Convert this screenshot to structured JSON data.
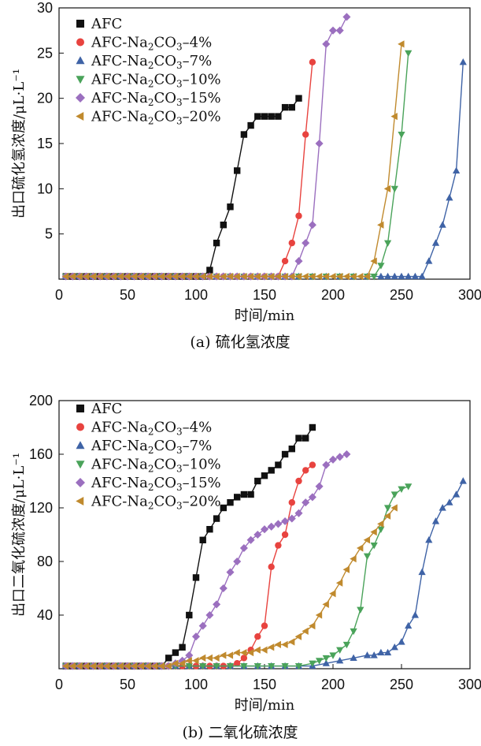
{
  "charts": [
    {
      "id": "a",
      "type": "scatter-line",
      "ylabel": "出口硫化氢浓度/μL·L⁻¹",
      "xlabel": "时间/min",
      "caption": "(a) 硫化氢浓度",
      "xlim": [
        0,
        300
      ],
      "ylim": [
        0,
        30
      ],
      "xticks": [
        0,
        50,
        100,
        150,
        200,
        250,
        300
      ],
      "yticks": [
        5,
        10,
        15,
        20,
        25,
        30
      ],
      "series": [
        {
          "name": "AFC",
          "marker": "square",
          "color": "#111111",
          "x": [
            5,
            10,
            15,
            20,
            25,
            30,
            35,
            40,
            45,
            50,
            55,
            60,
            65,
            70,
            75,
            80,
            85,
            90,
            95,
            100,
            105,
            110,
            115,
            120,
            125,
            130,
            135,
            140,
            145,
            150,
            155,
            160,
            165,
            170,
            175
          ],
          "y": [
            0.3,
            0.3,
            0.3,
            0.3,
            0.3,
            0.3,
            0.3,
            0.3,
            0.3,
            0.3,
            0.3,
            0.3,
            0.3,
            0.3,
            0.3,
            0.3,
            0.3,
            0.3,
            0.3,
            0.3,
            0.3,
            1,
            4,
            6,
            8,
            12,
            16,
            17,
            18,
            18,
            18,
            18,
            19,
            19,
            20
          ]
        },
        {
          "name": "AFC-Na2CO3-4%",
          "label_parts": [
            "AFC-Na",
            "2",
            "CO",
            "3",
            "–4%"
          ],
          "marker": "circle",
          "color": "#e8433f",
          "x": [
            5,
            10,
            15,
            20,
            25,
            30,
            35,
            40,
            45,
            50,
            55,
            60,
            65,
            70,
            75,
            80,
            85,
            90,
            95,
            100,
            105,
            110,
            115,
            120,
            125,
            130,
            135,
            140,
            145,
            150,
            155,
            160,
            165,
            170,
            175,
            180,
            185
          ],
          "y": [
            0.3,
            0.3,
            0.3,
            0.3,
            0.3,
            0.3,
            0.3,
            0.3,
            0.3,
            0.3,
            0.3,
            0.3,
            0.3,
            0.3,
            0.3,
            0.3,
            0.3,
            0.3,
            0.3,
            0.3,
            0.3,
            0.3,
            0.3,
            0.3,
            0.3,
            0.3,
            0.3,
            0.3,
            0.3,
            0.3,
            0.3,
            0.3,
            2,
            4,
            7,
            16,
            24
          ]
        },
        {
          "name": "AFC-Na2CO3-7%",
          "label_parts": [
            "AFC-Na",
            "2",
            "CO",
            "3",
            "–7%"
          ],
          "marker": "triangle-up",
          "color": "#3f63a6",
          "x": [
            5,
            15,
            25,
            35,
            45,
            55,
            65,
            75,
            85,
            95,
            105,
            115,
            125,
            135,
            145,
            155,
            165,
            175,
            185,
            195,
            205,
            215,
            225,
            235,
            240,
            245,
            250,
            255,
            260,
            265,
            270,
            275,
            280,
            285,
            290,
            295
          ],
          "y": [
            0.3,
            0.3,
            0.3,
            0.3,
            0.3,
            0.3,
            0.3,
            0.3,
            0.3,
            0.3,
            0.3,
            0.3,
            0.3,
            0.3,
            0.3,
            0.3,
            0.3,
            0.3,
            0.3,
            0.3,
            0.3,
            0.3,
            0.3,
            0.3,
            0.3,
            0.3,
            0.3,
            0.3,
            0.3,
            0.3,
            2,
            4,
            6,
            9,
            12,
            24
          ]
        },
        {
          "name": "AFC-Na2CO3-10%",
          "label_parts": [
            "AFC-Na",
            "2",
            "CO",
            "3",
            "–10%"
          ],
          "marker": "triangle-down",
          "color": "#4aa35a",
          "x": [
            5,
            15,
            25,
            35,
            45,
            55,
            65,
            75,
            85,
            95,
            105,
            115,
            125,
            135,
            145,
            155,
            165,
            175,
            185,
            195,
            205,
            215,
            225,
            230,
            235,
            240,
            245,
            250,
            255
          ],
          "y": [
            0.3,
            0.3,
            0.3,
            0.3,
            0.3,
            0.3,
            0.3,
            0.3,
            0.3,
            0.3,
            0.3,
            0.3,
            0.3,
            0.3,
            0.3,
            0.3,
            0.3,
            0.3,
            0.3,
            0.3,
            0.3,
            0.3,
            0.3,
            0.3,
            1.5,
            4,
            10,
            16,
            25
          ]
        },
        {
          "name": "AFC-Na2CO3-15%",
          "label_parts": [
            "AFC-Na",
            "2",
            "CO",
            "3",
            "–15%"
          ],
          "marker": "diamond",
          "color": "#9b6fbf",
          "x": [
            5,
            10,
            15,
            20,
            25,
            30,
            35,
            40,
            45,
            50,
            55,
            60,
            65,
            70,
            75,
            80,
            85,
            90,
            95,
            100,
            105,
            110,
            115,
            120,
            125,
            130,
            135,
            140,
            145,
            150,
            155,
            160,
            165,
            170,
            175,
            180,
            185,
            190,
            195,
            200,
            205,
            210
          ],
          "y": [
            0.3,
            0.3,
            0.3,
            0.3,
            0.3,
            0.3,
            0.3,
            0.3,
            0.3,
            0.3,
            0.3,
            0.3,
            0.3,
            0.3,
            0.3,
            0.3,
            0.3,
            0.3,
            0.3,
            0.3,
            0.3,
            0.3,
            0.3,
            0.3,
            0.3,
            0.3,
            0.3,
            0.3,
            0.3,
            0.3,
            0.3,
            0.3,
            0.3,
            0.3,
            2,
            4,
            6,
            15,
            26,
            27.5,
            27.5,
            29
          ]
        },
        {
          "name": "AFC-Na2CO3-20%",
          "label_parts": [
            "AFC-Na",
            "2",
            "CO",
            "3",
            "–20%"
          ],
          "marker": "triangle-left",
          "color": "#c08a2e",
          "x": [
            5,
            10,
            15,
            20,
            25,
            30,
            35,
            40,
            45,
            50,
            55,
            60,
            65,
            70,
            75,
            80,
            85,
            90,
            95,
            100,
            105,
            110,
            115,
            120,
            125,
            130,
            135,
            140,
            145,
            150,
            155,
            160,
            165,
            170,
            175,
            180,
            185,
            190,
            195,
            200,
            205,
            210,
            215,
            220,
            225,
            230,
            235,
            240,
            245,
            250
          ],
          "y": [
            0.3,
            0.3,
            0.3,
            0.3,
            0.3,
            0.3,
            0.3,
            0.3,
            0.3,
            0.3,
            0.3,
            0.3,
            0.3,
            0.3,
            0.3,
            0.3,
            0.3,
            0.3,
            0.3,
            0.3,
            0.3,
            0.3,
            0.3,
            0.3,
            0.3,
            0.3,
            0.3,
            0.3,
            0.3,
            0.3,
            0.3,
            0.3,
            0.3,
            0.3,
            0.3,
            0.3,
            0.3,
            0.3,
            0.3,
            0.3,
            0.3,
            0.3,
            0.3,
            0.3,
            0.3,
            2,
            6,
            10,
            18,
            26
          ]
        }
      ]
    },
    {
      "id": "b",
      "type": "scatter-line",
      "ylabel": "出口二氧化硫浓度/μL·L⁻¹",
      "xlabel": "时间/min",
      "caption": "(b) 二氧化硫浓度",
      "xlim": [
        0,
        300
      ],
      "ylim": [
        0,
        200
      ],
      "xticks": [
        0,
        50,
        100,
        150,
        200,
        250,
        300
      ],
      "yticks": [
        40,
        80,
        120,
        160,
        200
      ],
      "series": [
        {
          "name": "AFC",
          "marker": "square",
          "color": "#111111",
          "x": [
            5,
            10,
            15,
            20,
            25,
            30,
            35,
            40,
            45,
            50,
            55,
            60,
            65,
            70,
            75,
            80,
            85,
            90,
            95,
            100,
            105,
            110,
            115,
            120,
            125,
            130,
            135,
            140,
            145,
            150,
            155,
            160,
            165,
            170,
            175,
            180,
            185
          ],
          "y": [
            2,
            2,
            2,
            2,
            2,
            2,
            2,
            2,
            2,
            2,
            2,
            2,
            2,
            2,
            2,
            8,
            12,
            16,
            40,
            68,
            96,
            104,
            112,
            120,
            124,
            128,
            130,
            130,
            140,
            144,
            148,
            152,
            160,
            164,
            172,
            172,
            180
          ]
        },
        {
          "name": "AFC-Na2CO3-4%",
          "label_parts": [
            "AFC-Na",
            "2",
            "CO",
            "3",
            "–4%"
          ],
          "marker": "circle",
          "color": "#e8433f",
          "x": [
            5,
            10,
            15,
            20,
            25,
            30,
            35,
            40,
            45,
            50,
            55,
            60,
            65,
            70,
            75,
            80,
            85,
            90,
            95,
            100,
            105,
            110,
            115,
            120,
            125,
            130,
            135,
            140,
            145,
            150,
            155,
            160,
            165,
            170,
            175,
            180,
            185
          ],
          "y": [
            2,
            2,
            2,
            2,
            2,
            2,
            2,
            2,
            2,
            2,
            2,
            2,
            2,
            2,
            2,
            2,
            2,
            2,
            2,
            2,
            2,
            2,
            2,
            2,
            2,
            4,
            8,
            14,
            24,
            32,
            76,
            92,
            100,
            124,
            140,
            148,
            152
          ]
        },
        {
          "name": "AFC-Na2CO3-7%",
          "label_parts": [
            "AFC-Na",
            "2",
            "CO",
            "3",
            "–7%"
          ],
          "marker": "triangle-up",
          "color": "#3f63a6",
          "x": [
            5,
            15,
            25,
            35,
            45,
            55,
            65,
            75,
            85,
            95,
            105,
            115,
            125,
            135,
            145,
            155,
            165,
            175,
            185,
            195,
            205,
            215,
            225,
            230,
            235,
            240,
            245,
            250,
            255,
            260,
            265,
            270,
            275,
            280,
            285,
            290,
            295
          ],
          "y": [
            2,
            2,
            2,
            2,
            2,
            2,
            2,
            2,
            2,
            2,
            2,
            2,
            2,
            2,
            2,
            2,
            2,
            2,
            2,
            4,
            6,
            8,
            10,
            10,
            12,
            12,
            16,
            20,
            32,
            40,
            72,
            96,
            110,
            120,
            124,
            130,
            140
          ]
        },
        {
          "name": "AFC-Na2CO3-10%",
          "label_parts": [
            "AFC-Na",
            "2",
            "CO",
            "3",
            "–10%"
          ],
          "marker": "triangle-down",
          "color": "#4aa35a",
          "x": [
            5,
            15,
            25,
            35,
            45,
            55,
            65,
            75,
            85,
            95,
            105,
            115,
            125,
            135,
            145,
            155,
            165,
            175,
            185,
            190,
            195,
            200,
            205,
            210,
            215,
            220,
            225,
            230,
            235,
            240,
            245,
            250,
            255
          ],
          "y": [
            2,
            2,
            2,
            2,
            2,
            2,
            2,
            2,
            2,
            2,
            2,
            2,
            2,
            2,
            2,
            2,
            2,
            2,
            4,
            6,
            8,
            10,
            14,
            18,
            28,
            44,
            84,
            92,
            104,
            120,
            130,
            134,
            136
          ]
        },
        {
          "name": "AFC-Na2CO3-15%",
          "label_parts": [
            "AFC-Na",
            "2",
            "CO",
            "3",
            "–15%"
          ],
          "marker": "diamond",
          "color": "#9b6fbf",
          "x": [
            5,
            10,
            15,
            20,
            25,
            30,
            35,
            40,
            45,
            50,
            55,
            60,
            65,
            70,
            75,
            80,
            85,
            90,
            95,
            100,
            105,
            110,
            115,
            120,
            125,
            130,
            135,
            140,
            145,
            150,
            155,
            160,
            165,
            170,
            175,
            180,
            185,
            190,
            195,
            200,
            205,
            210
          ],
          "y": [
            2,
            2,
            2,
            2,
            2,
            2,
            2,
            2,
            2,
            2,
            2,
            2,
            2,
            2,
            2,
            2,
            4,
            6,
            10,
            24,
            32,
            40,
            48,
            60,
            72,
            80,
            90,
            96,
            100,
            104,
            106,
            108,
            110,
            112,
            116,
            124,
            128,
            136,
            152,
            156,
            158,
            160
          ]
        },
        {
          "name": "AFC-Na2CO3-20%",
          "label_parts": [
            "AFC-Na",
            "2",
            "CO",
            "3",
            "–20%"
          ],
          "marker": "triangle-left",
          "color": "#c08a2e",
          "x": [
            5,
            10,
            15,
            20,
            25,
            30,
            35,
            40,
            45,
            50,
            55,
            60,
            65,
            70,
            75,
            80,
            85,
            90,
            95,
            100,
            105,
            110,
            115,
            120,
            125,
            130,
            135,
            140,
            145,
            150,
            155,
            160,
            165,
            170,
            175,
            180,
            185,
            190,
            195,
            200,
            205,
            210,
            215,
            220,
            225,
            230,
            235,
            240,
            245
          ],
          "y": [
            2,
            2,
            2,
            2,
            2,
            2,
            2,
            2,
            2,
            2,
            2,
            2,
            2,
            2,
            2,
            2,
            4,
            4,
            6,
            6,
            8,
            8,
            8,
            10,
            10,
            12,
            12,
            12,
            14,
            14,
            16,
            18,
            18,
            20,
            24,
            28,
            32,
            40,
            48,
            56,
            64,
            74,
            82,
            90,
            96,
            102,
            108,
            114,
            120
          ]
        }
      ]
    }
  ]
}
